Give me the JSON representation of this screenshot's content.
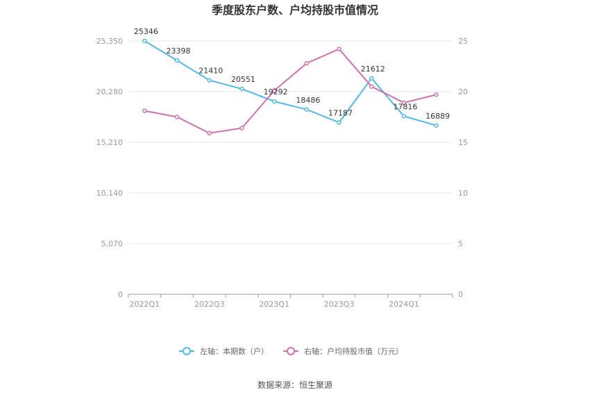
{
  "chart_data": {
    "type": "line",
    "title": "季度股东户数、户均持股市值情况",
    "categories": [
      "2022Q1",
      "2022Q2",
      "2022Q3",
      "2022Q4",
      "2023Q1",
      "2023Q2",
      "2023Q3",
      "2023Q4",
      "2024Q1",
      "2024Q2"
    ],
    "x_tick_labels": [
      "2022Q1",
      "2022Q3",
      "2023Q1",
      "2023Q3",
      "2024Q1"
    ],
    "y_left": {
      "min": 0,
      "max": 25350,
      "ticks": [
        "0",
        "5,070",
        "10,140",
        "15,210",
        "20,280",
        "25,350"
      ]
    },
    "y_right": {
      "min": 0,
      "max": 25,
      "ticks": [
        "0",
        "5",
        "10",
        "15",
        "20",
        "25"
      ]
    },
    "series": [
      {
        "name": "左轴：本期数（户）",
        "axis": "left",
        "color": "#4cb9ea",
        "values": [
          25346,
          23398,
          21410,
          20551,
          19292,
          18486,
          17187,
          21612,
          17816,
          16889
        ],
        "labels": [
          "25346",
          "23398",
          "21410",
          "20551",
          "19292",
          "18486",
          "17187",
          "21612",
          "17816",
          "16889"
        ]
      },
      {
        "name": "右轴：户均持股市值（万元）",
        "axis": "right",
        "color": "#d36eae",
        "values": [
          18.1,
          17.5,
          15.9,
          16.4,
          20.1,
          22.8,
          24.2,
          20.5,
          18.9,
          19.7
        ]
      }
    ],
    "grid": true,
    "legend_position": "bottom"
  },
  "source_text": "数据来源：恒生聚源"
}
